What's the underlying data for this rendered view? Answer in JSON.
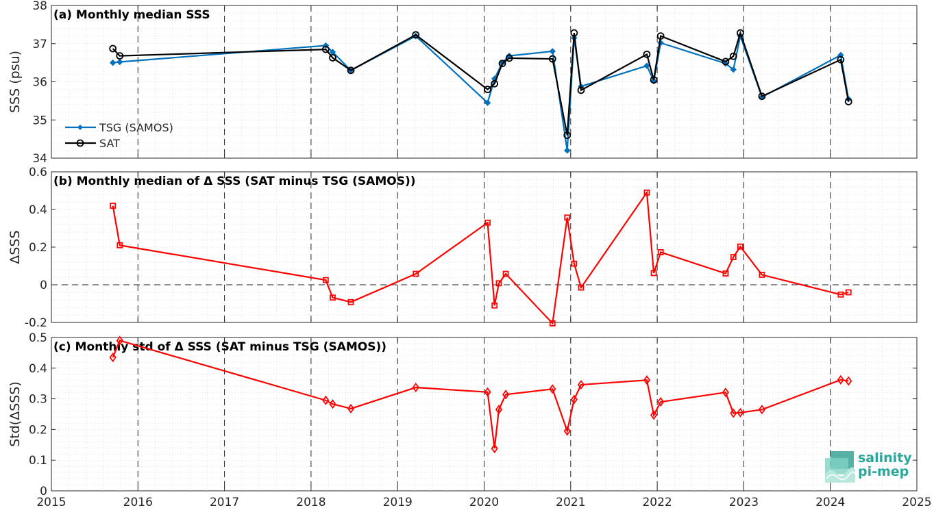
{
  "x_ticks": [
    "2015",
    "2016",
    "2017",
    "2018",
    "2019",
    "2020",
    "2021",
    "2022",
    "2023",
    "2024",
    "2025"
  ],
  "chart_data": [
    {
      "type": "line",
      "title": "(a) Monthly median SSS",
      "xlabel": "",
      "ylabel": "SSS (psu)",
      "xlim": [
        2015,
        2025
      ],
      "ylim": [
        34,
        38
      ],
      "yticks": [
        "34",
        "35",
        "36",
        "37",
        "38"
      ],
      "grid": true,
      "legend_position": "bottom-left",
      "x": [
        2015.71,
        2015.79,
        2018.17,
        2018.25,
        2018.46,
        2019.21,
        2020.04,
        2020.12,
        2020.21,
        2020.29,
        2020.79,
        2020.96,
        2021.04,
        2021.12,
        2021.88,
        2021.96,
        2022.04,
        2022.79,
        2022.88,
        2022.96,
        2023.21,
        2024.12,
        2024.21
      ],
      "series": [
        {
          "name": "TSG (SAMOS)",
          "color": "#0072BD",
          "marker": "diamond-filled",
          "values": [
            36.5,
            36.52,
            36.95,
            36.78,
            36.3,
            37.2,
            35.45,
            36.08,
            36.5,
            36.68,
            36.8,
            34.2,
            37.15,
            35.88,
            36.42,
            36.02,
            37.02,
            36.48,
            36.32,
            37.2,
            35.6,
            36.7,
            35.55
          ]
        },
        {
          "name": "SAT",
          "color": "#000000",
          "marker": "circle-open",
          "values": [
            36.87,
            36.68,
            36.85,
            36.63,
            36.3,
            37.23,
            35.8,
            35.95,
            36.48,
            36.62,
            36.6,
            34.6,
            37.28,
            35.78,
            36.72,
            36.05,
            37.2,
            36.53,
            36.67,
            37.28,
            35.62,
            36.58,
            35.48
          ]
        }
      ]
    },
    {
      "type": "line",
      "title": "(b) Monthly median of Δ SSS (SAT minus TSG (SAMOS))",
      "xlabel": "",
      "ylabel": "ΔSSS",
      "xlim": [
        2015,
        2025
      ],
      "ylim": [
        -0.2,
        0.6
      ],
      "yticks": [
        "-0.2",
        "0",
        "0.2",
        "0.4",
        "0.6"
      ],
      "grid": true,
      "reference_line": 0,
      "x": [
        2015.71,
        2015.79,
        2018.17,
        2018.25,
        2018.46,
        2019.21,
        2020.04,
        2020.12,
        2020.17,
        2020.25,
        2020.79,
        2020.96,
        2021.04,
        2021.12,
        2021.88,
        2021.96,
        2022.04,
        2022.79,
        2022.88,
        2022.96,
        2023.21,
        2024.12,
        2024.21
      ],
      "series": [
        {
          "color": "#FF0000",
          "marker": "square-open",
          "values": [
            0.42,
            0.21,
            0.025,
            -0.068,
            -0.092,
            0.058,
            0.33,
            -0.11,
            0.008,
            0.058,
            -0.205,
            0.357,
            0.112,
            -0.015,
            0.49,
            0.062,
            0.173,
            0.06,
            0.147,
            0.203,
            0.053,
            -0.052,
            -0.04
          ]
        }
      ]
    },
    {
      "type": "line",
      "title": "(c) Monthly std of Δ SSS (SAT minus TSG (SAMOS))",
      "xlabel": "",
      "ylabel": "Std(ΔSSS)",
      "xlim": [
        2015,
        2025
      ],
      "ylim": [
        0,
        0.5
      ],
      "yticks": [
        "0",
        "0.1",
        "0.2",
        "0.3",
        "0.4",
        "0.5"
      ],
      "grid": true,
      "x": [
        2015.71,
        2015.79,
        2018.17,
        2018.25,
        2018.46,
        2019.21,
        2020.04,
        2020.12,
        2020.17,
        2020.25,
        2020.79,
        2020.96,
        2021.04,
        2021.12,
        2021.88,
        2021.96,
        2022.04,
        2022.79,
        2022.88,
        2022.96,
        2023.21,
        2024.12,
        2024.21
      ],
      "series": [
        {
          "color": "#FF0000",
          "marker": "diamond-open",
          "values": [
            0.435,
            0.49,
            0.295,
            0.283,
            0.268,
            0.337,
            0.322,
            0.138,
            0.265,
            0.314,
            0.332,
            0.195,
            0.298,
            0.346,
            0.361,
            0.247,
            0.29,
            0.321,
            0.253,
            0.255,
            0.265,
            0.362,
            0.358
          ]
        }
      ]
    }
  ],
  "logo": {
    "line1": "salinity",
    "line2": "pi-mep",
    "color": "#2aa79b"
  }
}
